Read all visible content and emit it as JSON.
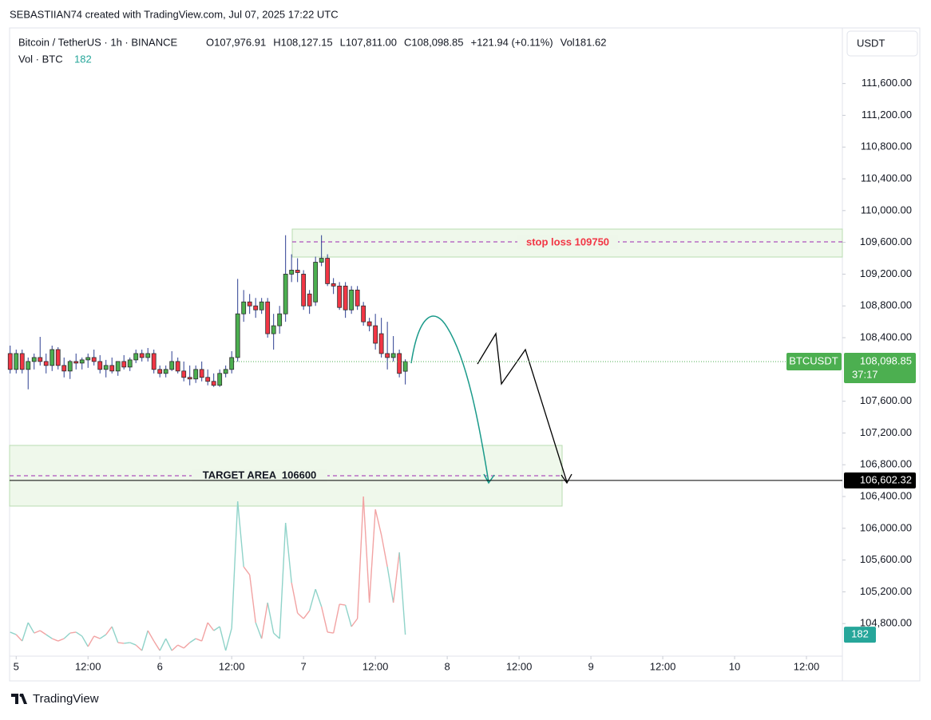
{
  "chart_data": {
    "type": "candlestick",
    "credit": "SEBASTIIAN74 created with TradingView.com, Jul 07, 2025 17:22 UTC",
    "symbol": "Bitcoin / TetherUS · 1h · BINANCE",
    "legend_ohlc": [
      {
        "label": "O",
        "value": "107,976.91"
      },
      {
        "label": "H",
        "value": "108,127.15"
      },
      {
        "label": "L",
        "value": "107,811.00"
      },
      {
        "label": "C",
        "value": "108,098.85"
      }
    ],
    "change": "+121.94 (+0.11%)",
    "volume_legend": {
      "label": "Vol",
      "value": "181.62"
    },
    "volume_title": "Vol · BTC",
    "volume_current": "182",
    "currency": "USDT",
    "brand": "TradingView",
    "x": [
      -1,
      0,
      1,
      2,
      3,
      4,
      5,
      6,
      7,
      8,
      9,
      10,
      11,
      12,
      13,
      14,
      15,
      16,
      17,
      18,
      19,
      20,
      21,
      22,
      23,
      24,
      25,
      26,
      27,
      28,
      29,
      30,
      31,
      32,
      33,
      34,
      35,
      36,
      37,
      38,
      39,
      40,
      41,
      42,
      43,
      44,
      45,
      46,
      47,
      48,
      49,
      50,
      51,
      52,
      53,
      54,
      55,
      56,
      57,
      58,
      59,
      60,
      61,
      62,
      63,
      64,
      65
    ],
    "open": [
      108200,
      108000,
      108200,
      108000,
      108100,
      108150,
      108100,
      108050,
      108250,
      108050,
      107980,
      108100,
      108080,
      108120,
      108150,
      108100,
      108000,
      108050,
      107980,
      108100,
      108030,
      108120,
      108200,
      108150,
      108200,
      108000,
      107950,
      108000,
      108100,
      107980,
      107900,
      107880,
      108000,
      107900,
      107850,
      107800,
      107950,
      108000,
      108150,
      108700,
      108850,
      108800,
      108750,
      108850,
      108450,
      108550,
      108700,
      109200,
      109250,
      109200,
      108950,
      108850,
      109350,
      109400,
      109080,
      109050,
      109050,
      108750,
      109000,
      108800,
      108600,
      108550,
      108450,
      108200,
      108150,
      108200,
      107976.91
    ],
    "high": [
      108300,
      108250,
      108250,
      108150,
      108200,
      108410,
      108200,
      108300,
      108280,
      108150,
      108120,
      108200,
      108150,
      108200,
      108250,
      108180,
      108120,
      108150,
      108100,
      108180,
      108150,
      108250,
      108250,
      108270,
      108250,
      108050,
      108050,
      108230,
      108150,
      108100,
      108050,
      108050,
      108100,
      108000,
      107950,
      108000,
      108050,
      108230,
      109140,
      109000,
      108950,
      108900,
      108900,
      108900,
      108700,
      108800,
      109690,
      109450,
      109400,
      109250,
      109000,
      109420,
      109690,
      109450,
      109150,
      109100,
      109100,
      109050,
      109050,
      108850,
      108650,
      108700,
      108650,
      108600,
      108420,
      108250,
      108127.15
    ],
    "low": [
      107950,
      107950,
      107950,
      107750,
      108000,
      108050,
      107950,
      107980,
      108000,
      107900,
      107880,
      108000,
      108000,
      108020,
      108050,
      107950,
      107900,
      107950,
      107920,
      108000,
      107980,
      108080,
      108100,
      108100,
      107950,
      107900,
      107900,
      107980,
      107950,
      107850,
      107800,
      107830,
      107850,
      107800,
      107780,
      107780,
      107900,
      107950,
      108100,
      108600,
      108700,
      108650,
      108700,
      108400,
      108250,
      108450,
      108600,
      109100,
      109100,
      108750,
      108700,
      108800,
      109300,
      109050,
      108950,
      108750,
      108650,
      108700,
      108750,
      108550,
      108480,
      108250,
      108150,
      108000,
      108100,
      107900,
      107811.0
    ],
    "close": [
      108000,
      108200,
      108000,
      108100,
      108150,
      108100,
      108050,
      108250,
      108050,
      107980,
      108100,
      108080,
      108120,
      108150,
      108100,
      108000,
      108050,
      107980,
      108100,
      108030,
      108120,
      108200,
      108150,
      108200,
      108000,
      107950,
      108000,
      108100,
      107980,
      107900,
      107880,
      108000,
      107900,
      107850,
      107800,
      107950,
      108000,
      108150,
      108700,
      108850,
      108800,
      108750,
      108850,
      108450,
      108550,
      108700,
      109200,
      109250,
      109220,
      108800,
      108800,
      109350,
      109400,
      109080,
      109050,
      108780,
      108750,
      109000,
      108800,
      108600,
      108550,
      108330,
      108200,
      108150,
      108200,
      107950,
      108098.85
    ],
    "volume": [
      198,
      182,
      140,
      260,
      192,
      208,
      182,
      156,
      140,
      156,
      192,
      198,
      172,
      104,
      172,
      156,
      182,
      234,
      130,
      125,
      130,
      114,
      78,
      208,
      140,
      78,
      156,
      78,
      114,
      94,
      130,
      156,
      140,
      260,
      208,
      234,
      78,
      224,
      1050,
      624,
      572,
      260,
      156,
      390,
      192,
      156,
      910,
      520,
      322,
      286,
      338,
      478,
      364,
      198,
      192,
      380,
      374,
      234,
      286,
      1082,
      390,
      998,
      832,
      624,
      390,
      718,
      181.62
    ],
    "volume_value_label": "182",
    "up_color": "#4caf50",
    "down_color": "#f23645",
    "wick_color": "#2c3e91",
    "vol_up_color": "#8fd3c9",
    "vol_down_color": "#f2a3a3",
    "xlim": [
      -1.1,
      138
    ],
    "xticks": [
      {
        "value": 0,
        "label": "5"
      },
      {
        "value": 12,
        "label": "12:00"
      },
      {
        "value": 24,
        "label": "6"
      },
      {
        "value": 36,
        "label": "12:00"
      },
      {
        "value": 48,
        "label": "7"
      },
      {
        "value": 60,
        "label": "12:00"
      },
      {
        "value": 72,
        "label": "8"
      },
      {
        "value": 84,
        "label": "12:00"
      },
      {
        "value": 96,
        "label": "9"
      },
      {
        "value": 108,
        "label": "12:00"
      },
      {
        "value": 120,
        "label": "10"
      },
      {
        "value": 132,
        "label": "12:00"
      }
    ],
    "ylim": [
      104390,
      112300
    ],
    "yticks": [
      {
        "value": 111600,
        "label": "111,600.00"
      },
      {
        "value": 111200,
        "label": "111,200.00"
      },
      {
        "value": 110800,
        "label": "110,800.00"
      },
      {
        "value": 110400,
        "label": "110,400.00"
      },
      {
        "value": 110000,
        "label": "110,000.00"
      },
      {
        "value": 109600,
        "label": "109,600.00"
      },
      {
        "value": 109200,
        "label": "109,200.00"
      },
      {
        "value": 108800,
        "label": "108,800.00"
      },
      {
        "value": 108400,
        "label": "108,400.00"
      },
      {
        "value": 107600,
        "label": "107,600.00"
      },
      {
        "value": 107200,
        "label": "107,200.00"
      },
      {
        "value": 106800,
        "label": "106,800.00"
      },
      {
        "value": 106400,
        "label": "106,400.00"
      },
      {
        "value": 106000,
        "label": "106,000.00"
      },
      {
        "value": 105600,
        "label": "105,600.00"
      },
      {
        "value": 105200,
        "label": "105,200.00"
      },
      {
        "value": 104800,
        "label": "104,800.00"
      }
    ],
    "vol_ylim": [
      0,
      4000
    ],
    "last_price": {
      "name": "BTCUSDT",
      "value": 108098.85,
      "label": "108,098.85",
      "countdown": "37:17"
    },
    "target_line": {
      "value": 106602.32,
      "label": "106,602.32"
    },
    "annotations": {
      "stop": "stop loss 109750",
      "target": "TARGET AREA  106600"
    }
  }
}
